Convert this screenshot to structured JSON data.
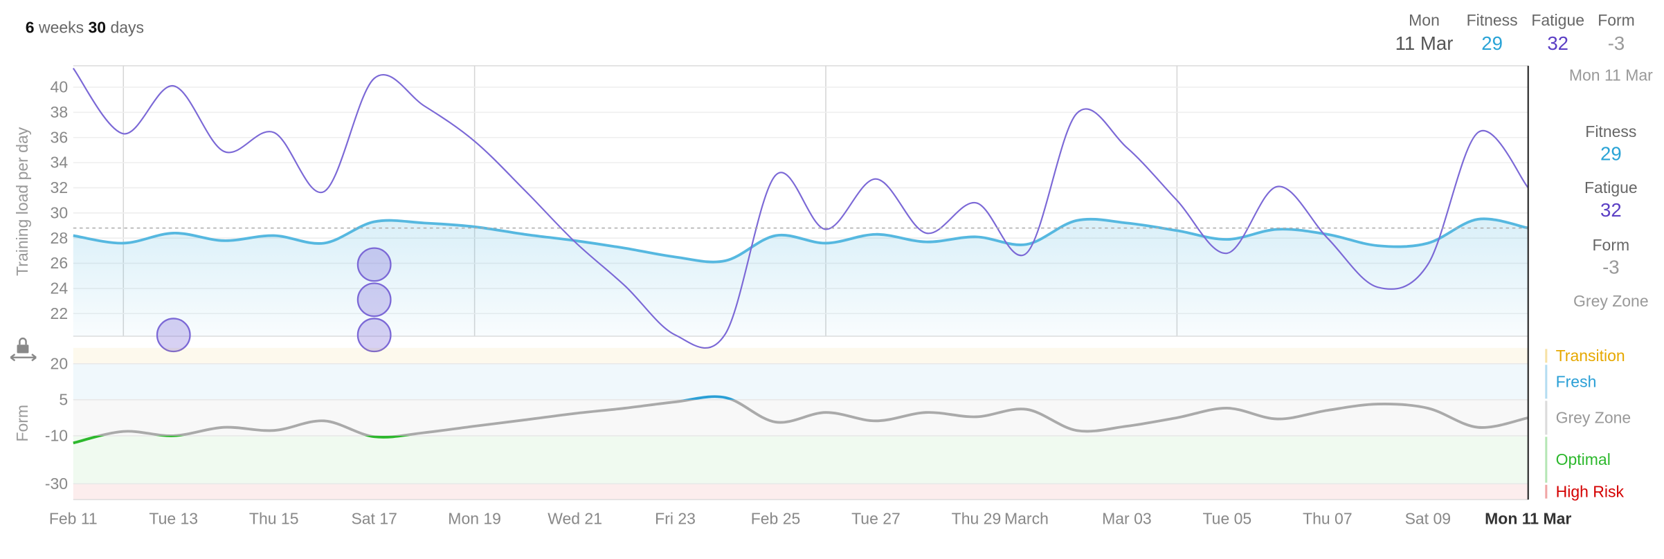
{
  "header": {
    "weeks_num": "6",
    "weeks": "weeks",
    "days_num": "30",
    "days": "days"
  },
  "summary": {
    "day": "Mon",
    "date": "11 Mar",
    "fitness": 29,
    "fatigue": 32,
    "form": -3
  },
  "sidebar": {
    "fitness": 29,
    "fatigue": 32,
    "form": -3,
    "zone": "Grey Zone"
  },
  "chart_data": [
    {
      "type": "line",
      "y_label": "Training load per day",
      "series": [
        {
          "name": "Fitness",
          "color": "#56b8e0",
          "values": [
            28.2,
            27.6,
            28.4,
            27.8,
            28.2,
            27.6,
            29.3,
            29.2,
            28.9,
            28.3,
            27.8,
            27.2,
            26.5,
            26.2,
            28.2,
            27.6,
            28.3,
            27.7,
            28.1,
            27.5,
            29.4,
            29.2,
            28.6,
            27.9,
            28.7,
            28.3,
            27.4,
            27.6,
            29.5,
            28.8
          ]
        },
        {
          "name": "Fatigue",
          "color": "#7b68d6",
          "values": [
            41.5,
            36.3,
            40.1,
            34.9,
            36.4,
            31.7,
            40.7,
            38.5,
            35.7,
            31.8,
            27.7,
            24.2,
            20.3,
            20.4,
            33.0,
            28.7,
            32.7,
            28.4,
            30.8,
            26.8,
            37.9,
            35.2,
            31.0,
            26.8,
            32.1,
            28.0,
            24.1,
            25.9,
            36.4,
            32.0
          ]
        }
      ],
      "activities": {
        "color": "#7b68d6",
        "x": [
          2,
          6,
          6,
          6
        ],
        "y": [
          20.3,
          20.3,
          23.1,
          25.9
        ]
      },
      "ylim": [
        20.2,
        41.7
      ],
      "yticks": [
        22,
        24,
        26,
        28,
        30,
        32,
        34,
        36,
        38,
        40
      ],
      "grid": true
    },
    {
      "type": "line",
      "y_label": "Form",
      "categories": [
        "Feb 11",
        null,
        "Tue 13",
        null,
        "Thu 15",
        null,
        "Sat 17",
        null,
        "Mon 19",
        null,
        "Wed 21",
        null,
        "Fri 23",
        null,
        "Feb 25",
        null,
        "Tue 27",
        null,
        "Thu 29",
        "March",
        null,
        "Mar 03",
        null,
        "Tue 05",
        null,
        "Thu 07",
        null,
        "Sat 09",
        null,
        "Mon 11 Mar"
      ],
      "series": [
        {
          "name": "Form",
          "color": "#aaaaaa",
          "values": [
            -13,
            -8.2,
            -10,
            -6.5,
            -7.8,
            -3.8,
            -10.4,
            -8.7,
            -6,
            -3.4,
            -0.7,
            1.5,
            4.1,
            5.9,
            -4.3,
            -0.3,
            -3.8,
            -0.3,
            -2.1,
            1,
            -7.8,
            -6,
            -2.5,
            1.5,
            -3,
            0.6,
            3.2,
            1.5,
            -6.5,
            -2.5
          ]
        }
      ],
      "zones": [
        {
          "name": "Transition",
          "color": "#e6a800"
        },
        {
          "name": "Fresh",
          "color": "#2a9fd6"
        },
        {
          "name": "Grey Zone",
          "color": "#999999"
        },
        {
          "name": "Optimal",
          "color": "#2db82d"
        },
        {
          "name": "High Risk",
          "color": "#d40000"
        }
      ],
      "ylim": [
        -36.6,
        26.6
      ],
      "yticks": [
        20,
        5,
        -10,
        -30
      ]
    }
  ]
}
